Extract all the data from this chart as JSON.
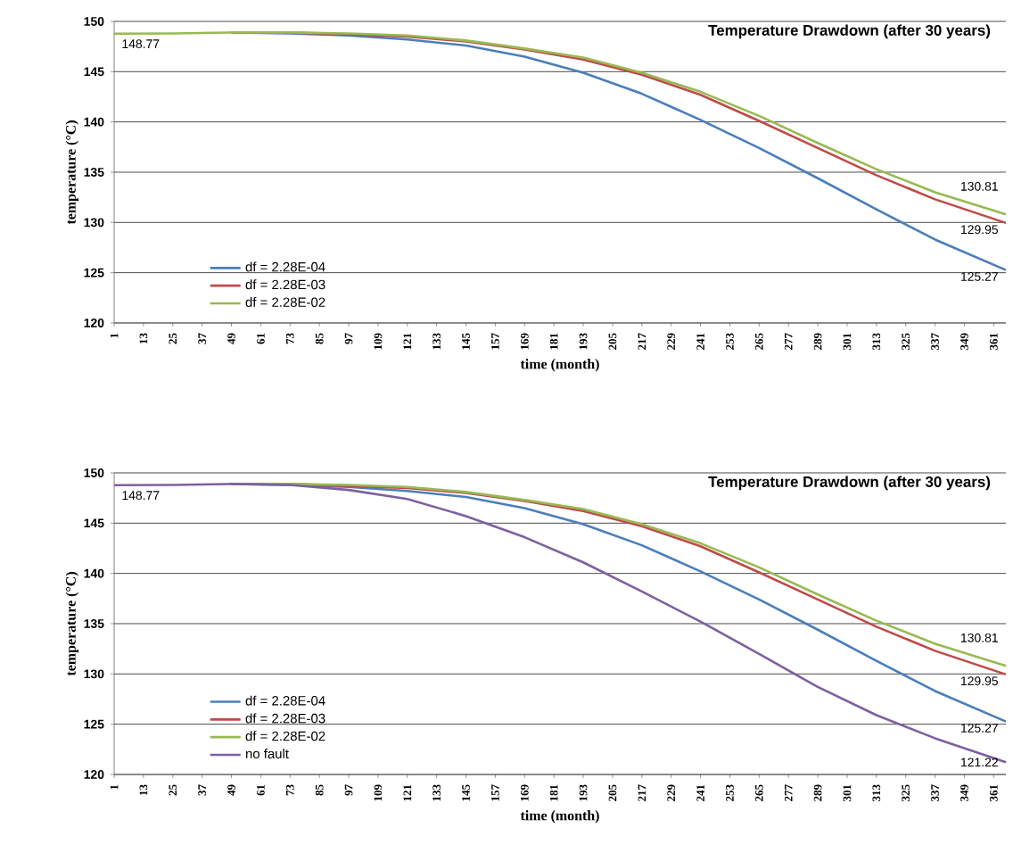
{
  "chart_data": [
    {
      "type": "line",
      "title": "Temperature Drawdown (after 30 years)",
      "xlabel": "time (month)",
      "ylabel": "temperature (°C)",
      "x": [
        1,
        25,
        49,
        73,
        97,
        121,
        145,
        169,
        193,
        217,
        241,
        265,
        289,
        313,
        337,
        366
      ],
      "xlim": [
        1,
        366
      ],
      "xticks": [
        1,
        13,
        25,
        37,
        49,
        61,
        73,
        85,
        97,
        109,
        121,
        133,
        145,
        157,
        169,
        181,
        193,
        205,
        217,
        229,
        241,
        253,
        265,
        277,
        289,
        301,
        313,
        325,
        337,
        349,
        361
      ],
      "ylim": [
        120,
        150
      ],
      "yticks": [
        120,
        125,
        130,
        135,
        140,
        145,
        150
      ],
      "grid": "y",
      "legend": "bottom left",
      "marker": "none",
      "line_style": "solid",
      "series": [
        {
          "name": "df = 2.28E-04",
          "color": "#4a7ebb",
          "values": [
            null,
            null,
            148.9,
            148.8,
            148.6,
            148.2,
            147.6,
            146.5,
            144.9,
            142.8,
            140.2,
            137.4,
            134.4,
            131.3,
            128.3,
            125.27
          ],
          "value_labels": [
            null,
            null,
            null,
            null,
            null,
            null,
            null,
            null,
            null,
            null,
            null,
            null,
            null,
            null,
            null,
            "125.27"
          ]
        },
        {
          "name": "df = 2.28E-03",
          "color": "#be4b48",
          "values": [
            null,
            null,
            148.9,
            148.9,
            148.7,
            148.5,
            148.0,
            147.2,
            146.2,
            144.7,
            142.7,
            140.1,
            137.4,
            134.7,
            132.3,
            129.95
          ],
          "value_labels": [
            null,
            null,
            null,
            null,
            null,
            null,
            null,
            null,
            null,
            null,
            null,
            null,
            null,
            null,
            null,
            "129.95"
          ]
        },
        {
          "name": "df = 2.28E-02",
          "color": "#98b954",
          "values": [
            148.77,
            148.8,
            148.9,
            148.9,
            148.8,
            148.6,
            148.1,
            147.3,
            146.4,
            144.9,
            143.0,
            140.6,
            137.9,
            135.3,
            133.0,
            130.81
          ],
          "value_labels": [
            "148.77",
            null,
            null,
            null,
            null,
            null,
            null,
            null,
            null,
            null,
            null,
            null,
            null,
            null,
            null,
            "130.81"
          ]
        }
      ]
    },
    {
      "type": "line",
      "title": "Temperature Drawdown (after 30 years)",
      "xlabel": "time (month)",
      "ylabel": "temperature (°C)",
      "x": [
        1,
        25,
        49,
        73,
        97,
        121,
        145,
        169,
        193,
        217,
        241,
        265,
        289,
        313,
        337,
        366
      ],
      "xlim": [
        1,
        366
      ],
      "xticks": [
        1,
        13,
        25,
        37,
        49,
        61,
        73,
        85,
        97,
        109,
        121,
        133,
        145,
        157,
        169,
        181,
        193,
        205,
        217,
        229,
        241,
        253,
        265,
        277,
        289,
        301,
        313,
        325,
        337,
        349,
        361
      ],
      "ylim": [
        120,
        150
      ],
      "yticks": [
        120,
        125,
        130,
        135,
        140,
        145,
        150
      ],
      "grid": "y",
      "legend": "bottom left",
      "marker": "none",
      "line_style": "solid",
      "series": [
        {
          "name": "df = 2.28E-04",
          "color": "#4a7ebb",
          "values": [
            null,
            null,
            148.9,
            148.8,
            148.6,
            148.2,
            147.6,
            146.5,
            144.9,
            142.8,
            140.2,
            137.4,
            134.4,
            131.3,
            128.3,
            125.27
          ],
          "value_labels": [
            null,
            null,
            null,
            null,
            null,
            null,
            null,
            null,
            null,
            null,
            null,
            null,
            null,
            null,
            null,
            "125.27"
          ]
        },
        {
          "name": "df = 2.28E-03",
          "color": "#be4b48",
          "values": [
            null,
            null,
            148.9,
            148.9,
            148.7,
            148.5,
            148.0,
            147.2,
            146.2,
            144.7,
            142.7,
            140.1,
            137.4,
            134.7,
            132.3,
            129.95
          ],
          "value_labels": [
            null,
            null,
            null,
            null,
            null,
            null,
            null,
            null,
            null,
            null,
            null,
            null,
            null,
            null,
            null,
            "129.95"
          ]
        },
        {
          "name": "df = 2.28E-02",
          "color": "#98b954",
          "values": [
            null,
            null,
            148.9,
            148.9,
            148.8,
            148.6,
            148.1,
            147.3,
            146.4,
            144.9,
            143.0,
            140.6,
            137.9,
            135.3,
            133.0,
            130.81
          ],
          "value_labels": [
            null,
            null,
            null,
            null,
            null,
            null,
            null,
            null,
            null,
            null,
            null,
            null,
            null,
            null,
            null,
            "130.81"
          ]
        },
        {
          "name": "no fault",
          "color": "#7d60a0",
          "values": [
            148.77,
            148.8,
            148.9,
            148.8,
            148.3,
            147.4,
            145.7,
            143.6,
            141.1,
            138.2,
            135.2,
            132.0,
            128.7,
            125.9,
            123.6,
            121.22
          ],
          "value_labels": [
            "148.77",
            null,
            null,
            null,
            null,
            null,
            null,
            null,
            null,
            null,
            null,
            null,
            null,
            null,
            null,
            "121.22"
          ]
        }
      ]
    }
  ]
}
